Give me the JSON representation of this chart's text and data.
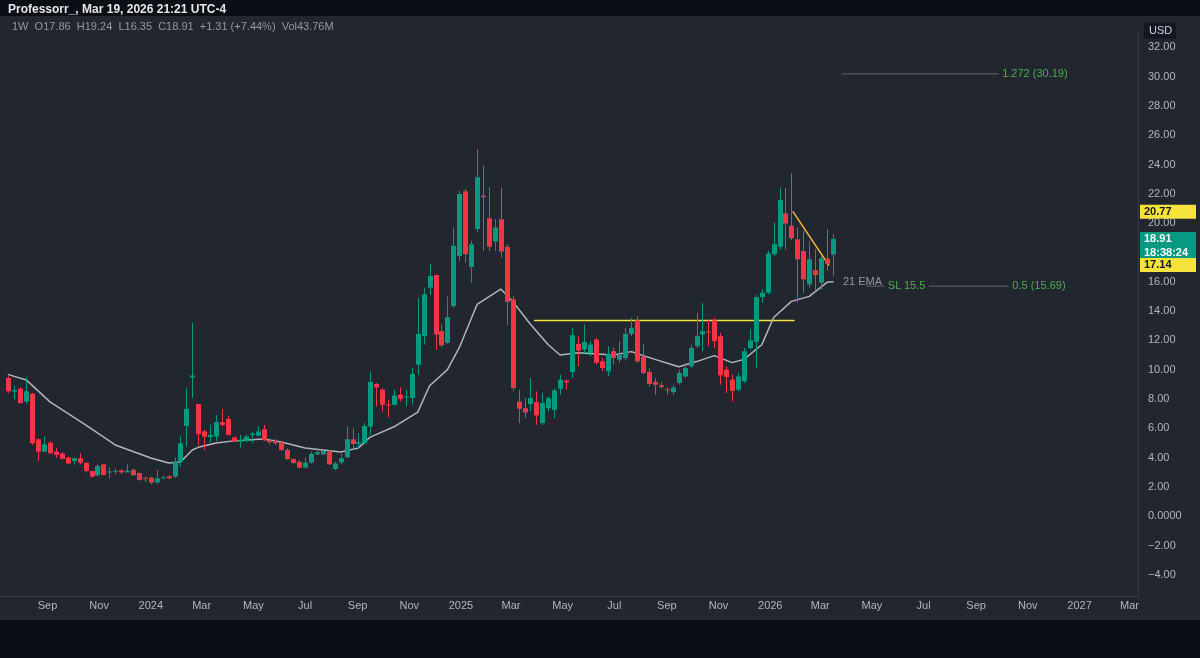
{
  "chart_data": {
    "type": "candlestick",
    "title": "Professorr_, Mar 19, 2026 21:21 UTC-4",
    "subtitle": "1W  O17.86  H19.24  L16.35  C18.91  +1.31 (+7.44%)  Vol43.76M",
    "ylabel": "USD",
    "x": [
      "2023-07-17",
      "2023-07-24",
      "2023-07-31",
      "2023-08-07",
      "2023-08-14",
      "2023-08-21",
      "2023-08-28",
      "2023-09-04",
      "2023-09-11",
      "2023-09-18",
      "2023-09-25",
      "2023-10-02",
      "2023-10-09",
      "2023-10-16",
      "2023-10-23",
      "2023-10-30",
      "2023-11-06",
      "2023-11-13",
      "2023-11-20",
      "2023-11-27",
      "2023-12-04",
      "2023-12-11",
      "2023-12-18",
      "2023-12-25",
      "2024-01-01",
      "2024-01-08",
      "2024-01-15",
      "2024-01-22",
      "2024-01-29",
      "2024-02-05",
      "2024-02-12",
      "2024-02-19",
      "2024-02-26",
      "2024-03-04",
      "2024-03-11",
      "2024-03-18",
      "2024-03-25",
      "2024-04-01",
      "2024-04-08",
      "2024-04-15",
      "2024-04-22",
      "2024-04-29",
      "2024-05-06",
      "2024-05-13",
      "2024-05-20",
      "2024-05-27",
      "2024-06-03",
      "2024-06-10",
      "2024-06-17",
      "2024-06-24",
      "2024-07-01",
      "2024-07-08",
      "2024-07-15",
      "2024-07-22",
      "2024-07-29",
      "2024-08-05",
      "2024-08-12",
      "2024-08-19",
      "2024-08-26",
      "2024-09-02",
      "2024-09-09",
      "2024-09-16",
      "2024-09-23",
      "2024-09-30",
      "2024-10-07",
      "2024-10-14",
      "2024-10-21",
      "2024-10-28",
      "2024-11-04",
      "2024-11-11",
      "2024-11-18",
      "2024-11-25",
      "2024-12-02",
      "2024-12-09",
      "2024-12-16",
      "2024-12-23",
      "2024-12-30",
      "2025-01-06",
      "2025-01-13",
      "2025-01-20",
      "2025-01-27",
      "2025-02-03",
      "2025-02-10",
      "2025-02-17",
      "2025-02-24",
      "2025-03-03",
      "2025-03-10",
      "2025-03-17",
      "2025-03-24",
      "2025-03-31",
      "2025-04-07",
      "2025-04-14",
      "2025-04-21",
      "2025-04-28",
      "2025-05-05",
      "2025-05-12",
      "2025-05-19",
      "2025-05-26",
      "2025-06-02",
      "2025-06-09",
      "2025-06-16",
      "2025-06-23",
      "2025-06-30",
      "2025-07-07",
      "2025-07-14",
      "2025-07-21",
      "2025-07-28",
      "2025-08-04",
      "2025-08-11",
      "2025-08-18",
      "2025-08-25",
      "2025-09-01",
      "2025-09-08",
      "2025-09-15",
      "2025-09-22",
      "2025-09-29",
      "2025-10-06",
      "2025-10-13",
      "2025-10-20",
      "2025-10-27",
      "2025-11-03",
      "2025-11-10",
      "2025-11-17",
      "2025-11-24",
      "2025-12-01",
      "2025-12-08",
      "2025-12-15",
      "2025-12-22",
      "2025-12-29",
      "2026-01-05",
      "2026-01-12",
      "2026-01-19",
      "2026-01-26",
      "2026-02-02",
      "2026-02-09",
      "2026-02-16",
      "2026-02-23",
      "2026-03-02",
      "2026-03-09",
      "2026-03-16"
    ],
    "ohlc": [
      [
        9.43,
        9.54,
        8.4,
        8.52
      ],
      [
        8.5,
        8.9,
        7.95,
        8.6
      ],
      [
        8.7,
        8.8,
        7.7,
        7.72
      ],
      [
        7.83,
        9.47,
        7.65,
        8.52
      ],
      [
        8.36,
        8.4,
        4.86,
        4.98
      ],
      [
        5.25,
        5.3,
        3.77,
        4.4
      ],
      [
        4.4,
        5.43,
        4.4,
        4.9
      ],
      [
        5.02,
        5.1,
        4.25,
        4.29
      ],
      [
        4.4,
        4.68,
        4.0,
        4.18
      ],
      [
        4.27,
        4.36,
        3.9,
        3.9
      ],
      [
        4.0,
        4.06,
        3.54,
        3.6
      ],
      [
        3.77,
        4.0,
        3.5,
        3.95
      ],
      [
        3.95,
        4.3,
        3.56,
        3.65
      ],
      [
        3.65,
        3.65,
        3.0,
        3.08
      ],
      [
        3.08,
        3.1,
        2.63,
        2.7
      ],
      [
        2.8,
        3.56,
        2.7,
        3.42
      ],
      [
        3.54,
        3.54,
        2.8,
        2.81
      ],
      [
        3.0,
        3.33,
        2.58,
        3.05
      ],
      [
        3.06,
        3.26,
        2.85,
        3.1
      ],
      [
        3.13,
        3.2,
        2.85,
        2.99
      ],
      [
        2.99,
        3.56,
        2.99,
        3.1
      ],
      [
        3.17,
        3.26,
        2.76,
        2.8
      ],
      [
        2.95,
        2.99,
        2.42,
        2.47
      ],
      [
        2.62,
        2.7,
        2.35,
        2.55
      ],
      [
        2.63,
        2.7,
        2.17,
        2.3
      ],
      [
        2.3,
        3.15,
        2.2,
        2.58
      ],
      [
        2.6,
        2.76,
        2.53,
        2.65
      ],
      [
        2.72,
        2.8,
        2.53,
        2.58
      ],
      [
        2.7,
        4.0,
        2.6,
        3.72
      ],
      [
        3.72,
        5.43,
        3.38,
        4.98
      ],
      [
        6.16,
        8.74,
        4.75,
        7.33
      ],
      [
        9.47,
        13.2,
        8.06,
        9.6
      ],
      [
        7.65,
        7.65,
        4.86,
        5.6
      ],
      [
        5.78,
        5.9,
        4.52,
        5.43
      ],
      [
        5.41,
        6.23,
        5.05,
        5.55
      ],
      [
        5.43,
        6.9,
        5.1,
        6.42
      ],
      [
        6.42,
        7.33,
        6.12,
        6.23
      ],
      [
        6.64,
        6.87,
        5.5,
        5.55
      ],
      [
        5.37,
        5.43,
        5.05,
        5.09
      ],
      [
        5.09,
        5.55,
        4.68,
        5.2
      ],
      [
        5.14,
        5.55,
        5.05,
        5.43
      ],
      [
        5.55,
        5.78,
        4.98,
        5.64
      ],
      [
        5.5,
        6.12,
        5.43,
        5.78
      ],
      [
        5.94,
        6.23,
        5.14,
        5.18
      ],
      [
        5.18,
        5.32,
        4.91,
        5.05
      ],
      [
        5.16,
        5.27,
        4.86,
        4.98
      ],
      [
        5.05,
        5.14,
        4.45,
        4.52
      ],
      [
        4.52,
        4.63,
        3.84,
        3.9
      ],
      [
        3.9,
        3.95,
        3.58,
        3.63
      ],
      [
        3.72,
        3.81,
        3.26,
        3.31
      ],
      [
        3.31,
        4.0,
        3.26,
        3.65
      ],
      [
        3.65,
        4.4,
        3.6,
        4.25
      ],
      [
        4.22,
        4.63,
        4.18,
        4.36
      ],
      [
        4.22,
        4.52,
        4.18,
        4.45
      ],
      [
        4.4,
        4.52,
        3.49,
        3.54
      ],
      [
        3.22,
        3.72,
        3.15,
        3.6
      ],
      [
        3.67,
        4.29,
        3.54,
        3.95
      ],
      [
        4.02,
        6.12,
        3.95,
        5.25
      ],
      [
        5.25,
        6.0,
        4.52,
        4.93
      ],
      [
        4.95,
        5.66,
        4.63,
        5.05
      ],
      [
        4.98,
        6.35,
        4.9,
        6.16
      ],
      [
        6.12,
        9.89,
        5.55,
        9.16
      ],
      [
        9.02,
        9.09,
        7.49,
        8.79
      ],
      [
        8.63,
        8.74,
        7.15,
        7.6
      ],
      [
        7.62,
        7.95,
        6.74,
        7.58
      ],
      [
        7.6,
        8.63,
        7.56,
        8.24
      ],
      [
        8.29,
        8.79,
        7.83,
        8.01
      ],
      [
        8.1,
        8.63,
        7.49,
        8.17
      ],
      [
        8.06,
        10.11,
        7.6,
        9.7
      ],
      [
        10.34,
        14.9,
        9.66,
        12.44
      ],
      [
        12.28,
        15.6,
        11.71,
        15.14
      ],
      [
        15.6,
        17.2,
        15.1,
        16.4
      ],
      [
        16.46,
        16.5,
        11.37,
        12.4
      ],
      [
        12.63,
        13.08,
        11.53,
        11.67
      ],
      [
        11.83,
        15.0,
        11.76,
        13.58
      ],
      [
        14.34,
        19.7,
        14.22,
        18.45
      ],
      [
        17.76,
        22.21,
        17.42,
        21.99
      ],
      [
        22.17,
        22.33,
        17.3,
        17.88
      ],
      [
        17.0,
        18.79,
        15.94,
        18.56
      ],
      [
        19.59,
        25.07,
        19.36,
        23.13
      ],
      [
        21.87,
        23.93,
        18.1,
        21.76
      ],
      [
        20.34,
        22.44,
        18.1,
        18.38
      ],
      [
        18.74,
        20.27,
        18.1,
        19.7
      ],
      [
        20.27,
        22.44,
        17.65,
        18.06
      ],
      [
        18.38,
        18.56,
        13.08,
        14.63
      ],
      [
        14.79,
        15.02,
        8.52,
        8.74
      ],
      [
        7.83,
        8.63,
        6.35,
        7.33
      ],
      [
        7.37,
        8.06,
        6.69,
        7.08
      ],
      [
        7.65,
        9.43,
        7.15,
        8.06
      ],
      [
        7.79,
        8.52,
        6.23,
        6.87
      ],
      [
        6.35,
        8.4,
        6.23,
        7.72
      ],
      [
        7.37,
        8.17,
        7.15,
        8.06
      ],
      [
        7.26,
        8.74,
        6.69,
        8.58
      ],
      [
        8.7,
        9.66,
        8.29,
        9.32
      ],
      [
        9.25,
        9.32,
        8.63,
        9.13
      ],
      [
        9.84,
        12.85,
        9.43,
        12.35
      ],
      [
        11.76,
        12.28,
        10.23,
        11.3
      ],
      [
        11.37,
        13.08,
        11.03,
        11.89
      ],
      [
        11.14,
        11.94,
        10.91,
        11.71
      ],
      [
        12.05,
        12.17,
        10.34,
        10.46
      ],
      [
        10.57,
        10.8,
        9.89,
        10.11
      ],
      [
        9.89,
        11.6,
        9.54,
        11.07
      ],
      [
        11.26,
        11.48,
        10.34,
        10.8
      ],
      [
        10.68,
        11.94,
        10.46,
        11.03
      ],
      [
        10.8,
        12.85,
        10.62,
        12.44
      ],
      [
        12.44,
        13.54,
        12.28,
        12.85
      ],
      [
        13.36,
        13.65,
        10.46,
        10.57
      ],
      [
        10.91,
        11.71,
        9.66,
        9.77
      ],
      [
        9.84,
        10.11,
        8.86,
        9.02
      ],
      [
        9.16,
        9.43,
        8.29,
        8.97
      ],
      [
        8.93,
        9.16,
        8.7,
        8.81
      ],
      [
        8.65,
        8.79,
        8.29,
        8.6
      ],
      [
        8.47,
        8.97,
        8.29,
        8.79
      ],
      [
        9.09,
        10.0,
        8.97,
        9.77
      ],
      [
        9.54,
        10.46,
        9.43,
        10.11
      ],
      [
        10.23,
        11.71,
        10.11,
        11.48
      ],
      [
        11.6,
        13.88,
        11.48,
        12.28
      ],
      [
        12.4,
        14.57,
        11.26,
        12.63
      ],
      [
        12.6,
        13.42,
        11.6,
        12.55
      ],
      [
        13.36,
        13.54,
        11.48,
        11.94
      ],
      [
        12.28,
        12.51,
        8.97,
        9.61
      ],
      [
        10.0,
        10.23,
        8.4,
        9.5
      ],
      [
        9.32,
        9.66,
        7.83,
        8.56
      ],
      [
        8.63,
        9.77,
        8.52,
        9.54
      ],
      [
        9.2,
        11.48,
        9.09,
        11.26
      ],
      [
        11.48,
        12.74,
        11.37,
        11.99
      ],
      [
        11.9,
        15.1,
        10.11,
        14.95
      ],
      [
        14.95,
        15.48,
        14.57,
        15.25
      ],
      [
        15.25,
        18.1,
        15.14,
        17.92
      ],
      [
        17.88,
        20.05,
        17.76,
        18.56
      ],
      [
        18.38,
        22.44,
        18.22,
        21.58
      ],
      [
        20.66,
        22.4,
        18.2,
        19.98
      ],
      [
        19.82,
        23.4,
        18.84,
        18.97
      ],
      [
        18.9,
        19.7,
        14.57,
        17.53
      ],
      [
        18.1,
        19.47,
        15.25,
        16.16
      ],
      [
        15.82,
        18.79,
        15.59,
        17.53
      ],
      [
        16.78,
        18.22,
        15.37,
        16.46
      ],
      [
        15.94,
        17.76,
        15.48,
        17.6
      ],
      [
        17.58,
        19.59,
        16.74,
        17.24
      ],
      [
        17.86,
        19.24,
        16.35,
        18.91
      ]
    ],
    "colors": [
      "#f23645",
      "#089981",
      "#f23645",
      "#089981",
      "#f23645",
      "#f23645",
      "#089981",
      "#f23645",
      "#f23645",
      "#f23645",
      "#f23645",
      "#089981",
      "#f23645",
      "#f23645",
      "#f23645",
      "#089981",
      "#f23645",
      "#089981",
      "#089981",
      "#f23645",
      "#089981",
      "#f23645",
      "#f23645",
      "#f23645",
      "#f23645",
      "#089981",
      "#089981",
      "#f23645",
      "#089981",
      "#089981",
      "#089981",
      "#089981",
      "#f23645",
      "#f23645",
      "#089981",
      "#089981",
      "#f23645",
      "#f23645",
      "#f23645",
      "#089981",
      "#089981",
      "#089981",
      "#089981",
      "#f23645",
      "#f23645",
      "#f23645",
      "#f23645",
      "#f23645",
      "#f23645",
      "#f23645",
      "#089981",
      "#089981",
      "#089981",
      "#089981",
      "#f23645",
      "#089981",
      "#089981",
      "#089981",
      "#f23645",
      "#089981",
      "#089981",
      "#089981",
      "#f23645",
      "#f23645",
      "#f23645",
      "#089981",
      "#f23645",
      "#089981",
      "#089981",
      "#089981",
      "#089981",
      "#089981",
      "#f23645",
      "#f23645",
      "#089981",
      "#089981",
      "#089981",
      "#f23645",
      "#089981",
      "#089981",
      "#f23645",
      "#f23645",
      "#089981",
      "#f23645",
      "#f23645",
      "#f23645",
      "#f23645",
      "#f23645",
      "#089981",
      "#f23645",
      "#089981",
      "#089981",
      "#089981",
      "#089981",
      "#f23645",
      "#089981",
      "#f23645",
      "#089981",
      "#089981",
      "#f23645",
      "#f23645",
      "#089981",
      "#f23645",
      "#089981",
      "#089981",
      "#089981",
      "#f23645",
      "#f23645",
      "#f23645",
      "#f23645",
      "#f23645",
      "#f23645",
      "#089981",
      "#089981",
      "#089981",
      "#089981",
      "#089981",
      "#089981",
      "#f23645",
      "#f23645",
      "#f23645",
      "#f23645",
      "#f23645",
      "#089981",
      "#089981",
      "#089981",
      "#089981",
      "#089981",
      "#089981",
      "#089981",
      "#089981",
      "#f23645",
      "#f23645",
      "#f23645",
      "#f23645",
      "#089981",
      "#f23645",
      "#089981",
      "#f23645",
      "#089981"
    ],
    "series": [
      {
        "name": "21 EMA",
        "type": "line",
        "color": "#b2b5be",
        "x": [
          "2023-07-17",
          "2023-08-07",
          "2023-09-04",
          "2023-10-16",
          "2023-11-20",
          "2024-01-01",
          "2024-01-22",
          "2024-02-05",
          "2024-02-19",
          "2024-02-26",
          "2024-03-18",
          "2024-04-08",
          "2024-05-13",
          "2024-06-03",
          "2024-07-01",
          "2024-08-12",
          "2024-09-02",
          "2024-09-16",
          "2024-10-14",
          "2024-11-11",
          "2024-11-25",
          "2024-12-16",
          "2024-12-30",
          "2025-01-20",
          "2025-02-17",
          "2025-03-03",
          "2025-03-24",
          "2025-04-14",
          "2025-04-28",
          "2025-05-19",
          "2025-06-30",
          "2025-07-21",
          "2025-08-18",
          "2025-09-15",
          "2025-10-06",
          "2025-10-27",
          "2025-11-17",
          "2025-12-01",
          "2025-12-22",
          "2026-01-05",
          "2026-01-26",
          "2026-02-16",
          "2026-03-09",
          "2026-03-16"
        ],
        "values": [
          9.66,
          9.3,
          7.8,
          6.23,
          4.86,
          3.97,
          3.63,
          3.7,
          4.52,
          4.7,
          5.0,
          5.14,
          5.27,
          5.07,
          4.66,
          4.38,
          4.66,
          5.4,
          6.1,
          7.1,
          8.9,
          10.0,
          11.5,
          14.45,
          15.5,
          14.66,
          13.1,
          11.7,
          11.0,
          11.16,
          11.0,
          11.23,
          10.7,
          10.2,
          10.55,
          10.96,
          10.48,
          10.7,
          11.7,
          13.56,
          14.66,
          15.0,
          15.96,
          16.0
        ]
      },
      {
        "type": "line",
        "color": "#f5e23b",
        "x": [
          "2025-03-29",
          "2026-01-29"
        ],
        "values": [
          13.36,
          13.36
        ]
      },
      {
        "type": "line",
        "color": "#f2b736",
        "x": [
          "2026-01-28",
          "2026-03-11"
        ],
        "values": [
          20.77,
          17.14
        ]
      },
      {
        "type": "line",
        "color": "#4a4f5c",
        "x": [
          "2026-03-27",
          "2026-09-27"
        ],
        "values": [
          30.19,
          30.19
        ]
      },
      {
        "type": "line",
        "color": "#4a4f5c",
        "x": [
          "2026-04-25",
          "2026-10-09"
        ],
        "values": [
          15.69,
          15.69
        ]
      }
    ],
    "annotations": [
      {
        "text": "1.272 (30.19)",
        "x": "2026-09-27",
        "y": 30.19
      },
      {
        "text": "SL 15.5",
        "x": "2026-05-15",
        "y": 15.69
      },
      {
        "text": "0.5 (15.69)",
        "x": "2026-10-09",
        "y": 15.69
      },
      "20.77",
      "18.91",
      "18:38:24",
      "17.14"
    ],
    "xlim": [
      "2023-07-07",
      "2027-03-11"
    ],
    "xticks": [
      {
        "value": "2023-09-01",
        "label": "Sep"
      },
      {
        "value": "2023-11-01",
        "label": "Nov"
      },
      {
        "value": "2024-01-01",
        "label": "2024"
      },
      {
        "value": "2024-03-01",
        "label": "Mar"
      },
      {
        "value": "2024-05-01",
        "label": "May"
      },
      {
        "value": "2024-07-01",
        "label": "Jul"
      },
      {
        "value": "2024-09-01",
        "label": "Sep"
      },
      {
        "value": "2024-11-01",
        "label": "Nov"
      },
      {
        "value": "2025-01-01",
        "label": "2025"
      },
      {
        "value": "2025-03-01",
        "label": "Mar"
      },
      {
        "value": "2025-05-01",
        "label": "May"
      },
      {
        "value": "2025-07-01",
        "label": "Jul"
      },
      {
        "value": "2025-09-01",
        "label": "Sep"
      },
      {
        "value": "2025-11-01",
        "label": "Nov"
      },
      {
        "value": "2026-01-01",
        "label": "2026"
      },
      {
        "value": "2026-03-01",
        "label": "Mar"
      },
      {
        "value": "2026-05-01",
        "label": "May"
      },
      {
        "value": "2026-07-01",
        "label": "Jul"
      },
      {
        "value": "2026-09-01",
        "label": "Sep"
      },
      {
        "value": "2026-11-01",
        "label": "Nov"
      },
      {
        "value": "2027-01-01",
        "label": "2027"
      },
      {
        "value": "2027-03-01",
        "label": "Mar"
      }
    ],
    "ylim": [
      -5.5,
      33
    ],
    "yticks": [
      {
        "value": 32,
        "label": "32.00"
      },
      {
        "value": 30,
        "label": "30.00"
      },
      {
        "value": 28,
        "label": "28.00"
      },
      {
        "value": 26,
        "label": "26.00"
      },
      {
        "value": 24,
        "label": "24.00"
      },
      {
        "value": 22,
        "label": "22.00"
      },
      {
        "value": 20,
        "label": "20.00"
      },
      {
        "value": 16,
        "label": "16.00"
      },
      {
        "value": 14,
        "label": "14.00"
      },
      {
        "value": 12,
        "label": "12.00"
      },
      {
        "value": 10,
        "label": "10.00"
      },
      {
        "value": 8,
        "label": "8.00"
      },
      {
        "value": 6,
        "label": "6.00"
      },
      {
        "value": 4,
        "label": "4.00"
      },
      {
        "value": 2,
        "label": "2.00"
      },
      {
        "value": 0,
        "label": "0.0000"
      },
      {
        "value": -2,
        "label": "−2.00"
      },
      {
        "value": -4,
        "label": "−4.00"
      }
    ]
  }
}
